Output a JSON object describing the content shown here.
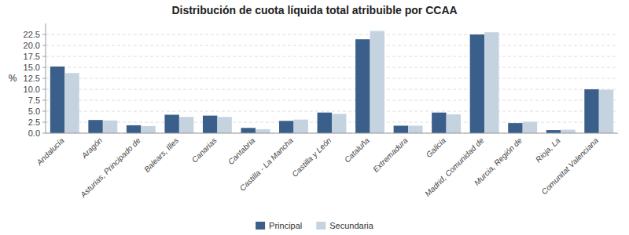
{
  "chart_data": {
    "type": "bar",
    "title": "Distribución de cuota líquida total atribuible por CCAA",
    "ylabel": "%",
    "categories": [
      "Andalucía",
      "Aragón",
      "Asturias, Principado de",
      "Balears, Illes",
      "Canarias",
      "Cantabria",
      "Castilla - La Mancha",
      "Castilla y León",
      "Cataluña",
      "Extremadura",
      "Galicia",
      "Madrid, Comunidad de",
      "Murcia, Región de",
      "Rioja, La",
      "Comunitat Valenciana"
    ],
    "series": [
      {
        "name": "Principal",
        "color": "#3A5F8A",
        "values": [
          15.2,
          3.0,
          1.8,
          4.2,
          4.0,
          1.2,
          2.8,
          4.7,
          21.4,
          1.7,
          4.7,
          22.5,
          2.3,
          0.7,
          10.0
        ]
      },
      {
        "name": "Secundaria",
        "color": "#C5D3E0",
        "values": [
          13.7,
          2.9,
          1.6,
          3.7,
          3.7,
          0.9,
          3.1,
          4.4,
          23.3,
          1.7,
          4.3,
          23.0,
          2.6,
          0.8,
          9.9
        ]
      }
    ],
    "ylim": [
      0,
      25
    ],
    "yticks": [
      {
        "value": 0.0,
        "label": "0.0"
      },
      2.5,
      {
        "value": 5.0,
        "label": "5.0"
      },
      7.5,
      {
        "value": 10.0,
        "label": "10.0"
      },
      12.5,
      {
        "value": 15.0,
        "label": "15.0"
      },
      17.5,
      {
        "value": 20.0,
        "label": "20.0"
      },
      22.5
    ],
    "grid": true,
    "legend": "bottom"
  }
}
